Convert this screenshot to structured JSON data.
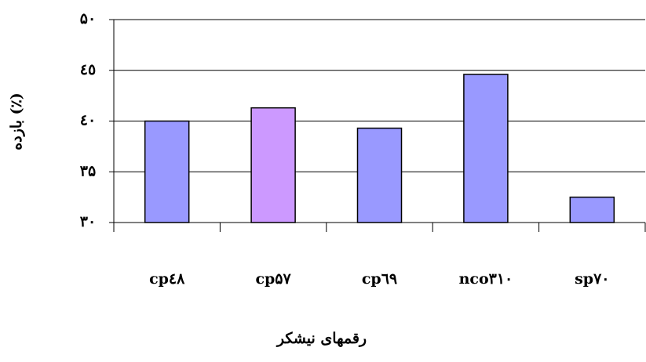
{
  "chart_data": {
    "type": "bar",
    "y_label": "بازده (٪)",
    "x_label": "رقمهای نیشکر",
    "categories": [
      "cp٤٨",
      "cp۵۷",
      "cp٦٩",
      "nco۳۱۰",
      "sp۷۰"
    ],
    "values": [
      40,
      41.3,
      39.3,
      44.6,
      32.5
    ],
    "colors": [
      "#9999ff",
      "#cc99ff",
      "#9999ff",
      "#9999ff",
      "#9999ff"
    ],
    "ylim": [
      30,
      50
    ],
    "yticks": [
      {
        "value": 30,
        "label": "۳۰"
      },
      {
        "value": 35,
        "label": "۳۵"
      },
      {
        "value": 40,
        "label": "٤٠"
      },
      {
        "value": 45,
        "label": "٤٥"
      },
      {
        "value": 50,
        "label": "۵۰"
      }
    ],
    "grid": true
  }
}
